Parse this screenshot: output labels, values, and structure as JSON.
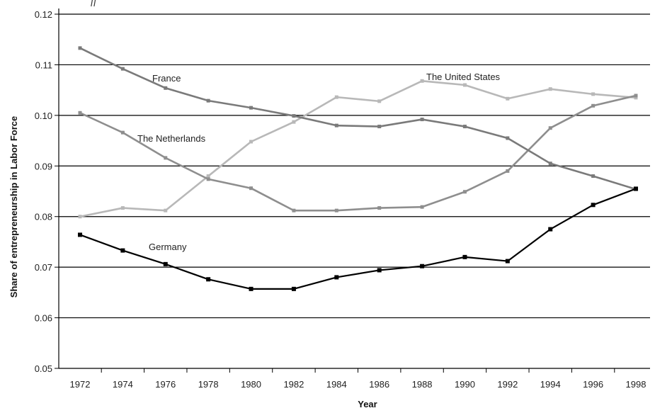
{
  "top_fragment": "ff",
  "chart_data": {
    "type": "line",
    "xlabel": "Year",
    "ylabel": "Share of entrepreneurship in Labor Force",
    "ylim": [
      0.05,
      0.12
    ],
    "yticks": [
      "0.05",
      "0.06",
      "0.07",
      "0.08",
      "0.09",
      "0.10",
      "0.11",
      "0.12"
    ],
    "x": [
      1972,
      1974,
      1976,
      1978,
      1980,
      1982,
      1984,
      1986,
      1988,
      1990,
      1992,
      1994,
      1996,
      1998
    ],
    "grid": "horizontal",
    "legend": "inline labels",
    "series": [
      {
        "name": "France",
        "color": "#7a7a7a",
        "values": [
          0.1133,
          0.1092,
          0.1054,
          0.1029,
          0.1015,
          0.0999,
          0.098,
          0.0978,
          0.0992,
          0.0978,
          0.0955,
          0.0905,
          0.088,
          0.0854
        ]
      },
      {
        "name": "The United States",
        "color": "#b8b8b8",
        "values": [
          0.08,
          0.0817,
          0.0812,
          0.088,
          0.0948,
          0.0987,
          0.1036,
          0.1028,
          0.1068,
          0.106,
          0.1033,
          0.1052,
          0.1042,
          0.1035
        ]
      },
      {
        "name": "The Netherlands",
        "color": "#8e8e8e",
        "values": [
          0.1005,
          0.0966,
          0.0916,
          0.0874,
          0.0856,
          0.0812,
          0.0812,
          0.0817,
          0.0819,
          0.0849,
          0.089,
          0.0975,
          0.1019,
          0.1039
        ]
      },
      {
        "name": "Germany",
        "color": "#000000",
        "values": [
          0.0764,
          0.0733,
          0.0706,
          0.0676,
          0.0657,
          0.0657,
          0.068,
          0.0694,
          0.0702,
          0.072,
          0.0712,
          0.0775,
          0.0823,
          0.0855
        ]
      }
    ],
    "series_labels": [
      "France",
      "The United States",
      "The Netherlands",
      "Germany"
    ]
  }
}
